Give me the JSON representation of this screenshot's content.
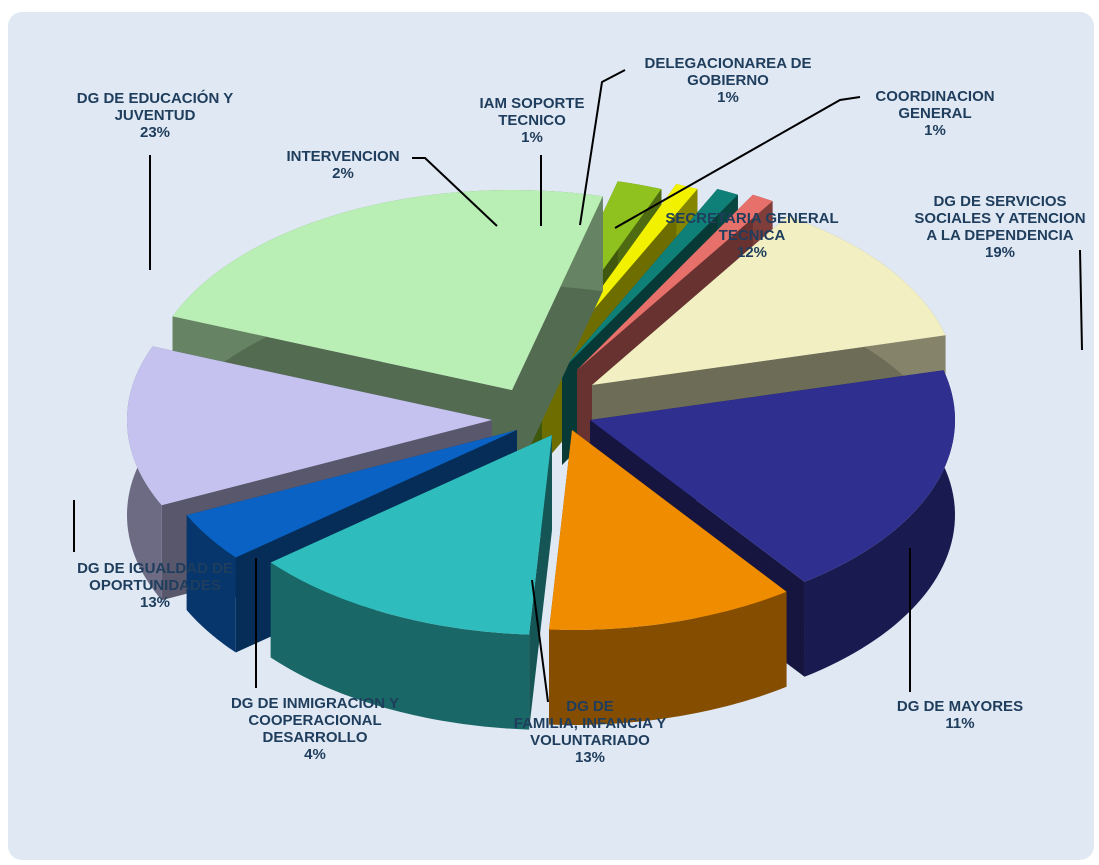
{
  "chart_data": {
    "type": "pie",
    "style": "3d-exploded",
    "slices": [
      {
        "name": "DG DE SERVICIOS SOCIALES Y ATENCION A LA DEPENDENCIA",
        "value": 19,
        "label_lines": [
          "DG DE SERVICIOS",
          "SOCIALES Y ATENCION",
          "A LA DEPENDENCIA"
        ],
        "pct": "19%",
        "color": "#2e2f8f"
      },
      {
        "name": "DG DE MAYORES",
        "value": 11,
        "label_lines": [
          "DG DE MAYORES"
        ],
        "pct": "11%",
        "color": "#f08c00"
      },
      {
        "name": "DG DE FAMILIA, INFANCIA Y VOLUNTARIADO",
        "value": 13,
        "label_lines": [
          "DG DE",
          "FAMILIA, INFANCIA Y",
          "VOLUNTARIADO"
        ],
        "pct": "13%",
        "color": "#2fbcbc"
      },
      {
        "name": "DG DE INMIGRACION Y COOPERACIONAL DESARROLLO",
        "value": 4,
        "label_lines": [
          "DG DE INMIGRACION Y",
          "COOPERACIONAL",
          "DESARROLLO"
        ],
        "pct": "4%",
        "color": "#0a63c4"
      },
      {
        "name": "DG DE IGUALDAD DE OPORTUNIDADES",
        "value": 13,
        "label_lines": [
          "DG DE IGUALDAD DE",
          "OPORTUNIDADES"
        ],
        "pct": "13%",
        "color": "#c6c2f0"
      },
      {
        "name": "DG DE EDUCACIÓN Y JUVENTUD",
        "value": 23,
        "label_lines": [
          "DG DE EDUCACIÓN Y",
          "JUVENTUD"
        ],
        "pct": "23%",
        "color": "#b9efb4"
      },
      {
        "name": "INTERVENCION",
        "value": 2,
        "label_lines": [
          "INTERVENCION"
        ],
        "pct": "2%",
        "color": "#8fc21f"
      },
      {
        "name": "IAM SOPORTE TECNICO",
        "value": 1,
        "label_lines": [
          "IAM SOPORTE",
          "TECNICO"
        ],
        "pct": "1%",
        "color": "#f2f200"
      },
      {
        "name": "DELEGACION AREA DE GOBIERNO",
        "value": 1,
        "label_lines": [
          "DELEGACIONAREA DE",
          "GOBIERNO"
        ],
        "pct": "1%",
        "color": "#0f8078"
      },
      {
        "name": "COORDINACION GENERAL",
        "value": 1,
        "label_lines": [
          "COORDINACION",
          "GENERAL"
        ],
        "pct": "1%",
        "color": "#e8706a"
      },
      {
        "name": "SECRETARIA GENERAL TECNICA",
        "value": 12,
        "label_lines": [
          "SECRETARIA GENERAL",
          "TECNICA"
        ],
        "pct": "12%",
        "color": "#f2f0c2"
      }
    ],
    "background": "#dfe8f3"
  }
}
